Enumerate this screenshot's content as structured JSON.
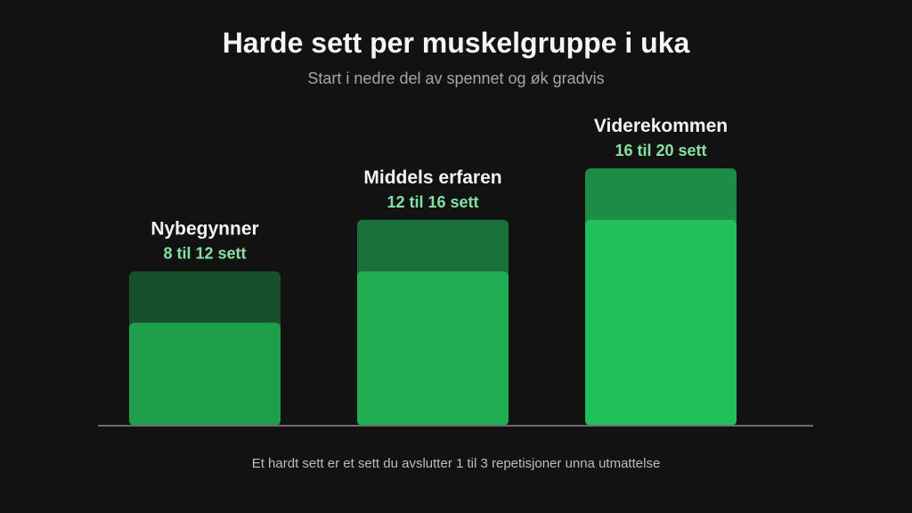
{
  "header": {
    "title": "Harde sett per muskelgruppe i uka",
    "subtitle": "Start i nedre del av spennet og øk gradvis"
  },
  "footer": {
    "note": "Et hardt sett er et sett du avslutter 1 til 3 repetisjoner unna utmattelse"
  },
  "chart_data": {
    "type": "bar",
    "categories": [
      "Nybegynner",
      "Middels erfaren",
      "Viderekommen"
    ],
    "range_labels": [
      "8 til 12 sett",
      "12 til 16 sett",
      "16 til 20 sett"
    ],
    "series": [
      {
        "name": "",
        "values": [
          8,
          12,
          16
        ]
      },
      {
        "name": "",
        "values": [
          12,
          16,
          20
        ]
      }
    ],
    "ylim": [
      0,
      20
    ],
    "grid": false,
    "colors": {
      "range_low": [
        "#1f9e4c",
        "#20ad52",
        "#22c05c"
      ],
      "range_high": [
        "#17502d",
        "#19703a",
        "#1c8c46"
      ],
      "axis": "#6b6b6b",
      "label_accent": "#86e0a2"
    }
  }
}
